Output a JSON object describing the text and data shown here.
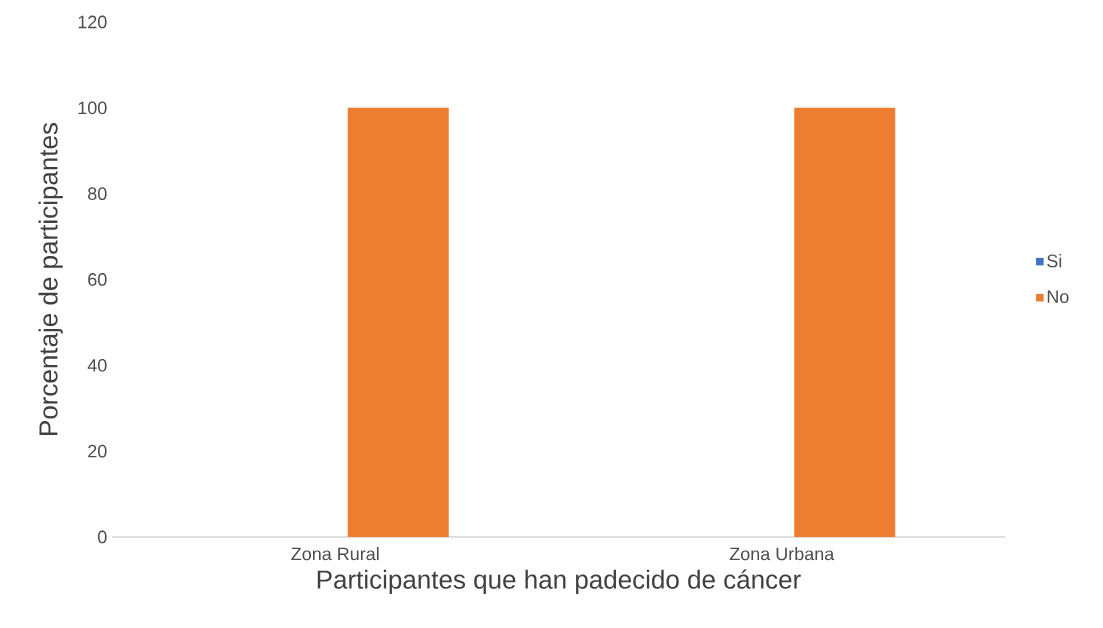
{
  "chart_data": {
    "type": "bar",
    "xlabel": "Participantes que han padecido de cáncer",
    "ylabel": "Porcentaje de participantes",
    "categories": [
      "Zona Rural",
      "Zona Urbana"
    ],
    "series": [
      {
        "name": "Si",
        "color": "#4472c4",
        "values": [
          0,
          0
        ]
      },
      {
        "name": "No",
        "color": "#ed7d31",
        "values": [
          100,
          100
        ]
      }
    ],
    "ylim": [
      0,
      120
    ],
    "yticks": [
      0,
      20,
      40,
      60,
      80,
      100,
      120
    ],
    "grid": false,
    "legend": "right"
  }
}
